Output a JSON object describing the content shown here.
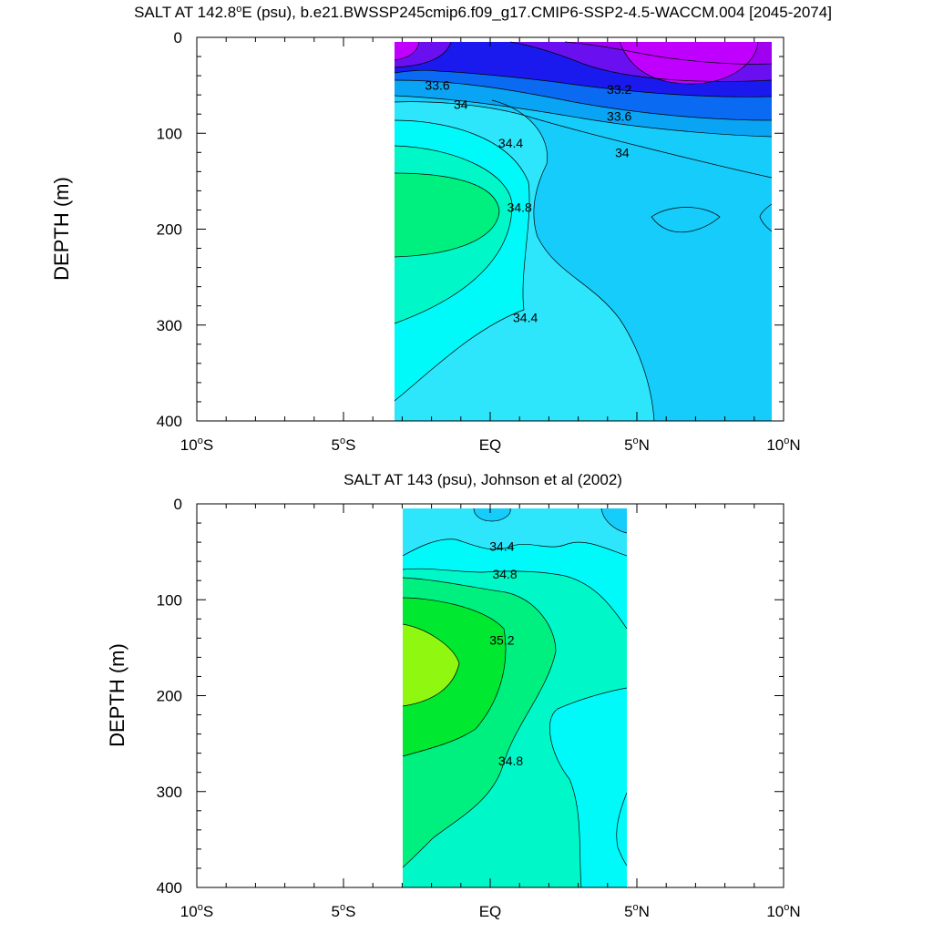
{
  "chart_data": [
    {
      "type": "contour",
      "title_prefix": "SALT AT 142.8",
      "title_deg": "o",
      "title_suffix": "E (psu), b.e21.BWSSP245cmip6.f09_g17.CMIP6-SSP2-4.5-WACCM.004 [2045-2074]",
      "ylabel": "DEPTH (m)",
      "xlim": [
        -10,
        10
      ],
      "ylim": [
        0,
        400
      ],
      "data_xlim": [
        -2.8,
        10
      ],
      "data_ylim": [
        5,
        400
      ],
      "x_ticks": [
        {
          "value": -10,
          "num": "10",
          "hemi": "S"
        },
        {
          "value": -5,
          "num": "5",
          "hemi": "S"
        },
        {
          "value": 0,
          "num": "EQ",
          "hemi": ""
        },
        {
          "value": 5,
          "num": "5",
          "hemi": "N"
        },
        {
          "value": 10,
          "num": "10",
          "hemi": "N"
        }
      ],
      "y_ticks": [
        0,
        100,
        200,
        300,
        400
      ],
      "contour_labels": [
        {
          "text": "33.6",
          "x": -1.8,
          "y": 50
        },
        {
          "text": "33.2",
          "x": 4.4,
          "y": 54
        },
        {
          "text": "34",
          "x": -1.0,
          "y": 70
        },
        {
          "text": "33.6",
          "x": 4.4,
          "y": 82
        },
        {
          "text": "34.4",
          "x": 0.7,
          "y": 110
        },
        {
          "text": "34",
          "x": 4.5,
          "y": 120
        },
        {
          "text": "34.8",
          "x": 1.0,
          "y": 177
        },
        {
          "text": "34.4",
          "x": 1.2,
          "y": 292
        }
      ]
    },
    {
      "type": "contour",
      "title_prefix": "SALT AT 143 (psu), Johnson et al (2002)",
      "title_deg": "",
      "title_suffix": "",
      "ylabel": "DEPTH (m)",
      "xlim": [
        -10,
        10
      ],
      "ylim": [
        0,
        400
      ],
      "data_xlim": [
        -2.8,
        5
      ],
      "data_ylim": [
        5,
        400
      ],
      "x_ticks": [
        {
          "value": -10,
          "num": "10",
          "hemi": "S"
        },
        {
          "value": -5,
          "num": "5",
          "hemi": "S"
        },
        {
          "value": 0,
          "num": "EQ",
          "hemi": ""
        },
        {
          "value": 5,
          "num": "5",
          "hemi": "N"
        },
        {
          "value": 10,
          "num": "10",
          "hemi": "N"
        }
      ],
      "y_ticks": [
        0,
        100,
        200,
        300,
        400
      ],
      "contour_labels": [
        {
          "text": "34.4",
          "x": 0.4,
          "y": 44
        },
        {
          "text": "34.8",
          "x": 0.5,
          "y": 73
        },
        {
          "text": "35.2",
          "x": 0.4,
          "y": 142
        },
        {
          "text": "34.8",
          "x": 0.7,
          "y": 268
        }
      ]
    }
  ],
  "colors": {
    "c_lt_33_0": "#c000ff",
    "c_33_0_33_2": "#a000f0",
    "c_33_2_33_4": "#6a10f0",
    "c_33_4_33_6": "#1a1aee",
    "c_33_6_33_8": "#0a6af2",
    "c_33_8_34_0": "#0aa4f4",
    "c_34_0_34_2": "#16ccfa",
    "c_34_2_34_4": "#2ee6fc",
    "c_34_4_34_6": "#00fafa",
    "c_34_6_34_8": "#00f8c8",
    "c_34_8_35_0": "#00f080",
    "c_35_0_35_2": "#00e830",
    "c_35_2_35_4": "#90f810"
  }
}
